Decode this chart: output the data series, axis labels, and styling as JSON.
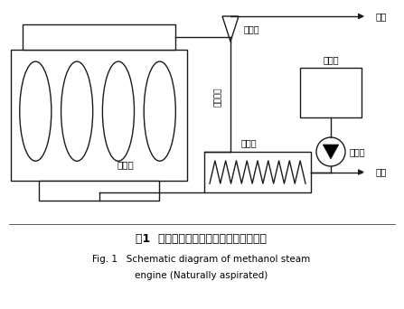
{
  "background_color": "#ffffff",
  "title_cn": "图1  甲醇蒸汽发动机示意图（自然吸气）",
  "title_en1": "Fig. 1   Schematic diagram of methanol steam",
  "title_en2": "engine (Naturally aspirated)",
  "label_neiranji": "内燃机",
  "label_pengsheqi": "喷射器",
  "label_jinqi": "进气",
  "label_jiachunxiang": "甲醇箱",
  "label_yeyabeng": "液压泵",
  "label_zhafa": "蒸发器",
  "label_paiqi": "排气",
  "label_jiachunyangqi": "甲醇蒸气",
  "line_color": "#1a1a1a",
  "lw": 1.0
}
